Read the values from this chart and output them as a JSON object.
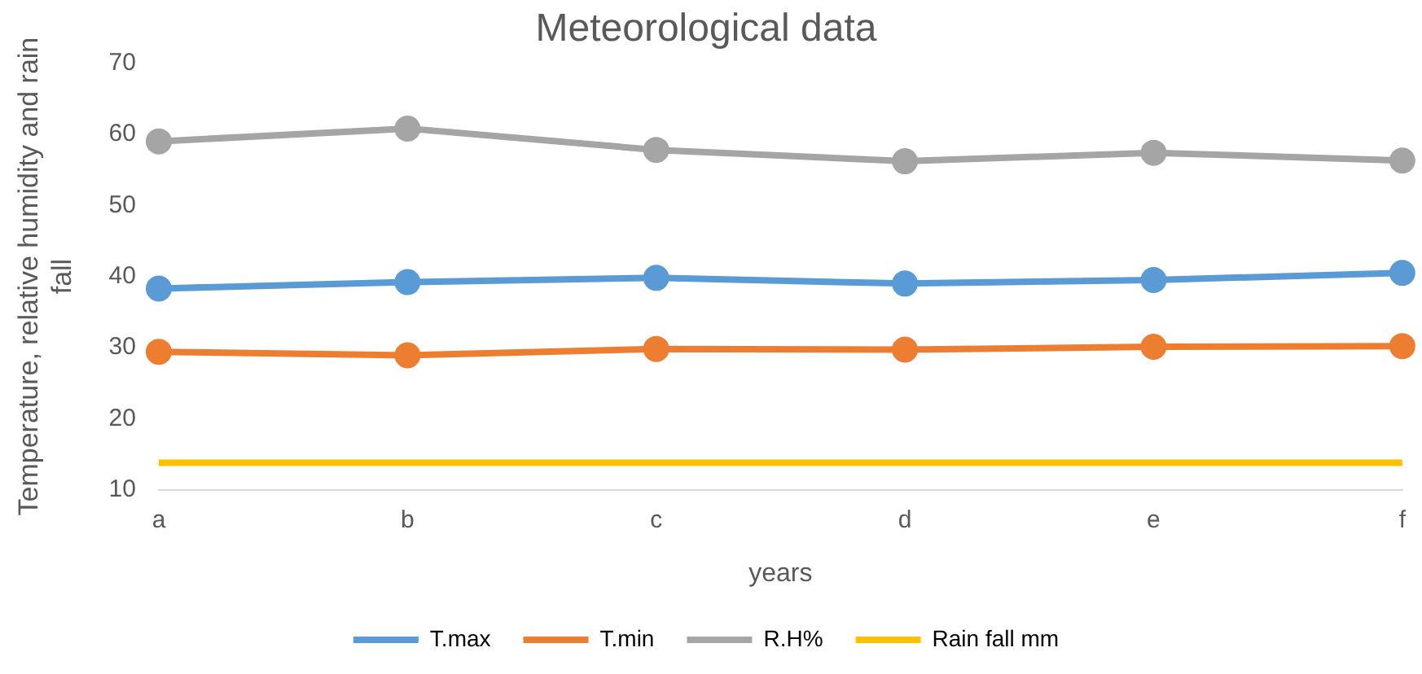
{
  "chart_data": {
    "type": "line",
    "title": "Meteorological data",
    "xlabel": "years",
    "ylabel": "Temperature, relative humidity and rain fall",
    "categories": [
      "a",
      "b",
      "c",
      "d",
      "e",
      "f"
    ],
    "series": [
      {
        "name": "T.max",
        "color": "#5b9bd5",
        "values": [
          38.3,
          39.2,
          39.8,
          39.0,
          39.5,
          40.5
        ]
      },
      {
        "name": "T.min",
        "color": "#ed7d31",
        "values": [
          29.4,
          28.9,
          29.8,
          29.7,
          30.1,
          30.2
        ]
      },
      {
        "name": "R.H%",
        "color": "#a5a5a5",
        "values": [
          59.0,
          60.8,
          57.8,
          56.2,
          57.4,
          56.3
        ]
      },
      {
        "name": "Rain fall mm",
        "color": "#ffc000",
        "values": [
          13.8,
          13.8,
          13.8,
          13.8,
          13.8,
          13.8
        ],
        "marker": "none"
      }
    ],
    "ylim": [
      10,
      70
    ],
    "yticks": [
      10,
      20,
      30,
      40,
      50,
      60,
      70
    ],
    "grid": false,
    "legend": "bottom",
    "marker": "circle",
    "line_style": "solid"
  }
}
